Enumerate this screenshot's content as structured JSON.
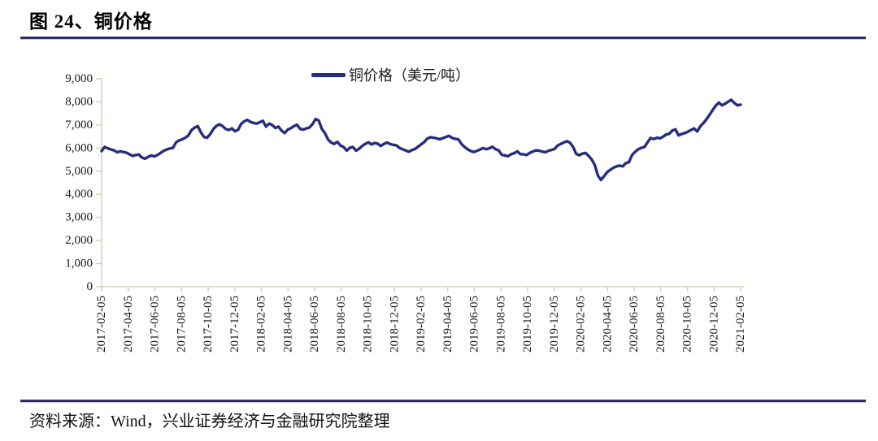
{
  "page": {
    "title": "图 24、铜价格"
  },
  "legend": {
    "label": "铜价格（美元/吨）"
  },
  "footer": {
    "source": "资料来源：Wind，兴业证券经济与金融研究院整理"
  },
  "colors": {
    "line": "#272D7D",
    "axis": "#D9D2BE",
    "rule": "#2D2F6B",
    "label_text": "#1a1a1a"
  },
  "chart_data": {
    "type": "line",
    "title": "铜价格",
    "legend_position": "top-center",
    "grid": false,
    "ylim": [
      0,
      9000
    ],
    "y_tick_labels": [
      "0",
      "1,000",
      "2,000",
      "3,000",
      "4,000",
      "5,000",
      "6,000",
      "7,000",
      "8,000",
      "9,000"
    ],
    "x_tick_labels": [
      "2017-02-05",
      "2017-04-05",
      "2017-06-05",
      "2017-08-05",
      "2017-10-05",
      "2017-12-05",
      "2018-02-05",
      "2018-04-05",
      "2018-06-05",
      "2018-08-05",
      "2018-10-05",
      "2018-12-05",
      "2019-02-05",
      "2019-04-05",
      "2019-06-05",
      "2019-08-05",
      "2019-10-05",
      "2019-12-05",
      "2020-02-05",
      "2020-04-05",
      "2020-06-05",
      "2020-08-05",
      "2020-10-05",
      "2020-12-05",
      "2021-02-05"
    ],
    "series": [
      {
        "name": "铜价格（美元/吨）",
        "frequency": "weekly",
        "values": [
          5870,
          6050,
          5990,
          5940,
          5900,
          5820,
          5860,
          5830,
          5800,
          5730,
          5660,
          5700,
          5720,
          5590,
          5540,
          5620,
          5680,
          5640,
          5700,
          5790,
          5880,
          5940,
          5980,
          6010,
          6250,
          6330,
          6380,
          6450,
          6550,
          6780,
          6890,
          6950,
          6680,
          6480,
          6450,
          6600,
          6820,
          6960,
          7030,
          6950,
          6830,
          6780,
          6850,
          6730,
          6790,
          7050,
          7160,
          7220,
          7130,
          7090,
          7060,
          7120,
          7180,
          6930,
          7060,
          7000,
          6870,
          6930,
          6760,
          6650,
          6800,
          6860,
          6950,
          7010,
          6830,
          6800,
          6850,
          6890,
          7040,
          7260,
          7190,
          6830,
          6650,
          6370,
          6240,
          6180,
          6270,
          6110,
          6050,
          5890,
          6010,
          6050,
          5890,
          5970,
          6090,
          6180,
          6250,
          6160,
          6220,
          6190,
          6090,
          6180,
          6240,
          6180,
          6140,
          6120,
          6010,
          5950,
          5900,
          5840,
          5910,
          5960,
          6060,
          6160,
          6260,
          6410,
          6470,
          6450,
          6420,
          6380,
          6430,
          6480,
          6530,
          6440,
          6400,
          6380,
          6180,
          6050,
          5950,
          5870,
          5830,
          5880,
          5940,
          6000,
          5950,
          5990,
          6060,
          5950,
          5900,
          5710,
          5680,
          5650,
          5730,
          5780,
          5860,
          5740,
          5730,
          5700,
          5790,
          5850,
          5900,
          5890,
          5850,
          5820,
          5880,
          5920,
          5960,
          6110,
          6180,
          6240,
          6300,
          6230,
          6050,
          5750,
          5690,
          5760,
          5790,
          5660,
          5510,
          5260,
          4810,
          4620,
          4790,
          4960,
          5060,
          5150,
          5210,
          5240,
          5210,
          5350,
          5390,
          5700,
          5840,
          5950,
          6010,
          6050,
          6250,
          6440,
          6390,
          6450,
          6420,
          6490,
          6590,
          6620,
          6760,
          6810,
          6550,
          6610,
          6650,
          6710,
          6780,
          6850,
          6720,
          6940,
          7080,
          7250,
          7440,
          7650,
          7840,
          7970,
          7850,
          7920,
          8010,
          8090,
          7950,
          7850,
          7880
        ]
      }
    ]
  }
}
